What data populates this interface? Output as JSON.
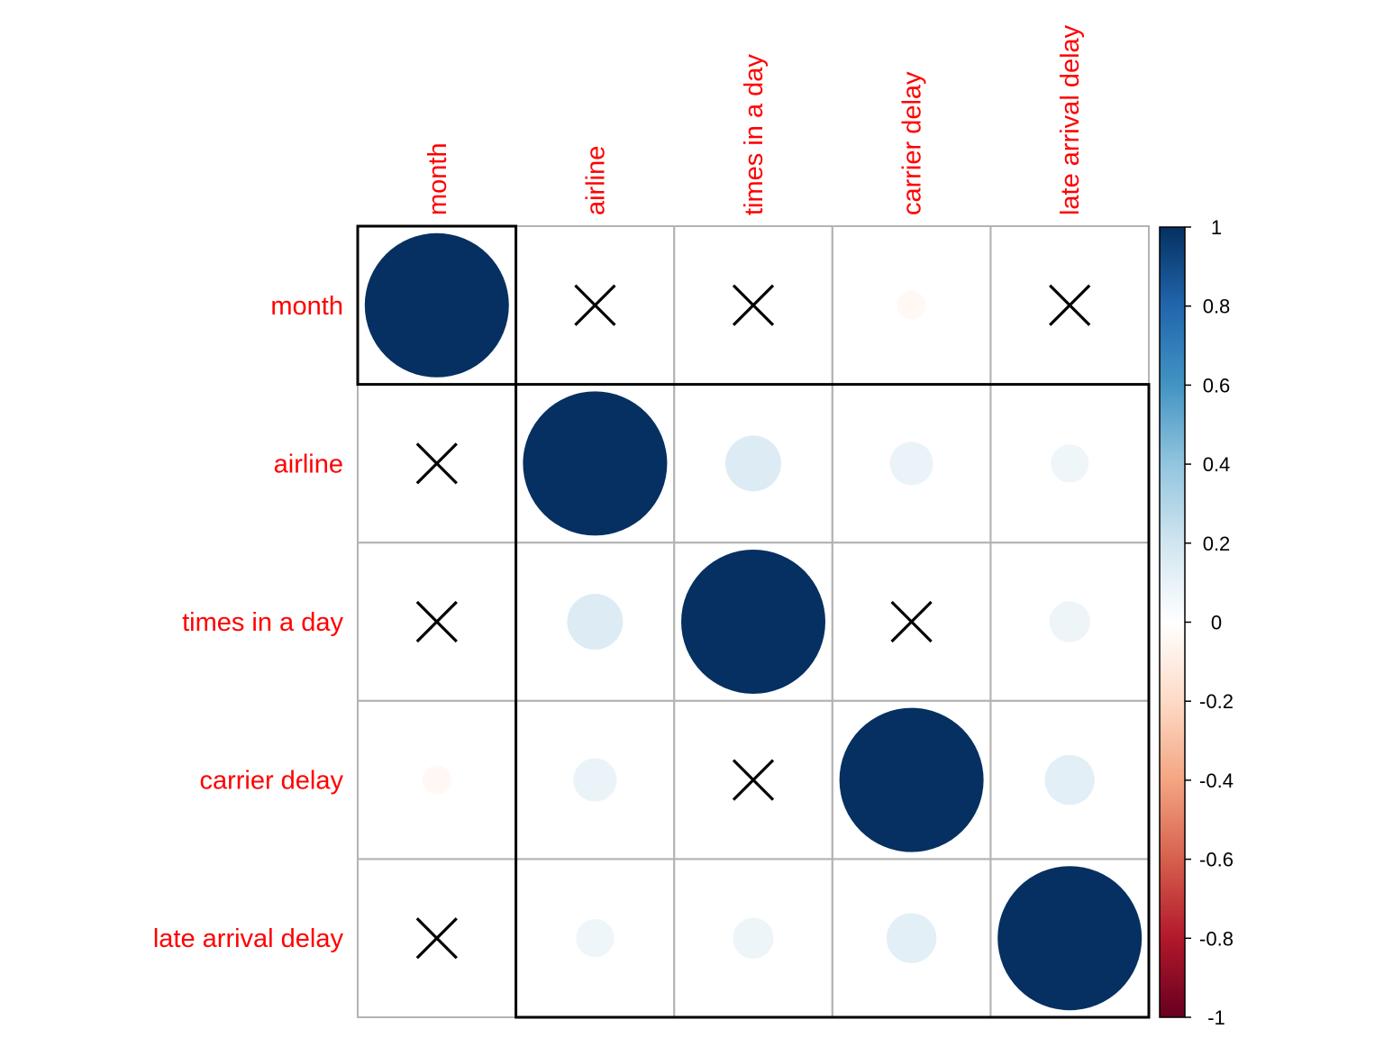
{
  "chart_data": {
    "type": "heatmap",
    "variables": [
      "month",
      "airline",
      "times in a day",
      "carrier delay",
      "late arrival delay"
    ],
    "matrix": [
      [
        1,
        0.0,
        0.0,
        -0.04,
        0.0
      ],
      [
        0.0,
        1,
        0.15,
        0.09,
        0.07
      ],
      [
        0.0,
        0.15,
        1,
        0.0,
        0.08
      ],
      [
        -0.04,
        0.09,
        0.0,
        1,
        0.12
      ],
      [
        0.0,
        0.07,
        0.08,
        0.12,
        1
      ]
    ],
    "insignificant": [
      [
        false,
        true,
        true,
        false,
        true
      ],
      [
        true,
        false,
        false,
        false,
        false
      ],
      [
        true,
        false,
        false,
        true,
        false
      ],
      [
        false,
        false,
        true,
        false,
        false
      ],
      [
        true,
        false,
        false,
        false,
        false
      ]
    ],
    "clusters": [
      [
        0,
        0
      ],
      [
        1,
        4
      ]
    ],
    "colorbar": {
      "ticks": [
        "1",
        "0.8",
        "0.6",
        "0.4",
        "0.2",
        "0",
        "-0.2",
        "-0.4",
        "-0.6",
        "-0.8",
        "-1"
      ],
      "colors": [
        "#67001f",
        "#b2182b",
        "#d6604d",
        "#f4a582",
        "#fddbc7",
        "#ffffff",
        "#d1e5f0",
        "#92c5de",
        "#4393c3",
        "#2166ac",
        "#053061"
      ],
      "min": -1,
      "max": 1
    },
    "label_color": "#ff0000",
    "title": ""
  }
}
